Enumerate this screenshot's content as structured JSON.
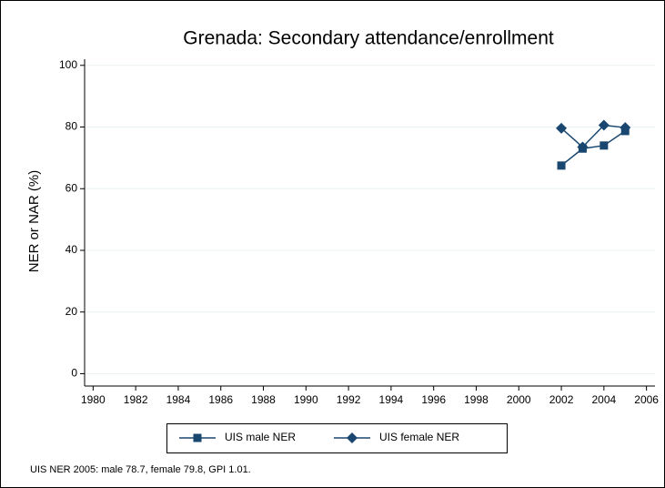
{
  "chart_data": {
    "type": "line",
    "title": "Grenada: Secondary attendance/enrollment",
    "y_label": "NER or NAR (%)",
    "note": "UIS NER 2005: male 78.7, female 79.8, GPI 1.01.",
    "x": [
      2002,
      2003,
      2004,
      2005
    ],
    "series": [
      {
        "name": "UIS male NER",
        "color": "#1a476f",
        "marker": "square",
        "values": [
          67.5,
          73,
          74,
          78.7
        ]
      },
      {
        "name": "UIS female NER",
        "color": "#1a476f",
        "marker": "diamond",
        "values": [
          79.6,
          73.5,
          80.6,
          79.8
        ]
      }
    ],
    "xlim": [
      1979.6,
      2006.4
    ],
    "xticks": [
      1980,
      1982,
      1984,
      1986,
      1988,
      1990,
      1992,
      1994,
      1996,
      1998,
      2000,
      2002,
      2004,
      2006
    ],
    "ylim": [
      -4,
      102
    ],
    "yticks": [
      0,
      20,
      40,
      60,
      80,
      100
    ],
    "grid": true
  }
}
